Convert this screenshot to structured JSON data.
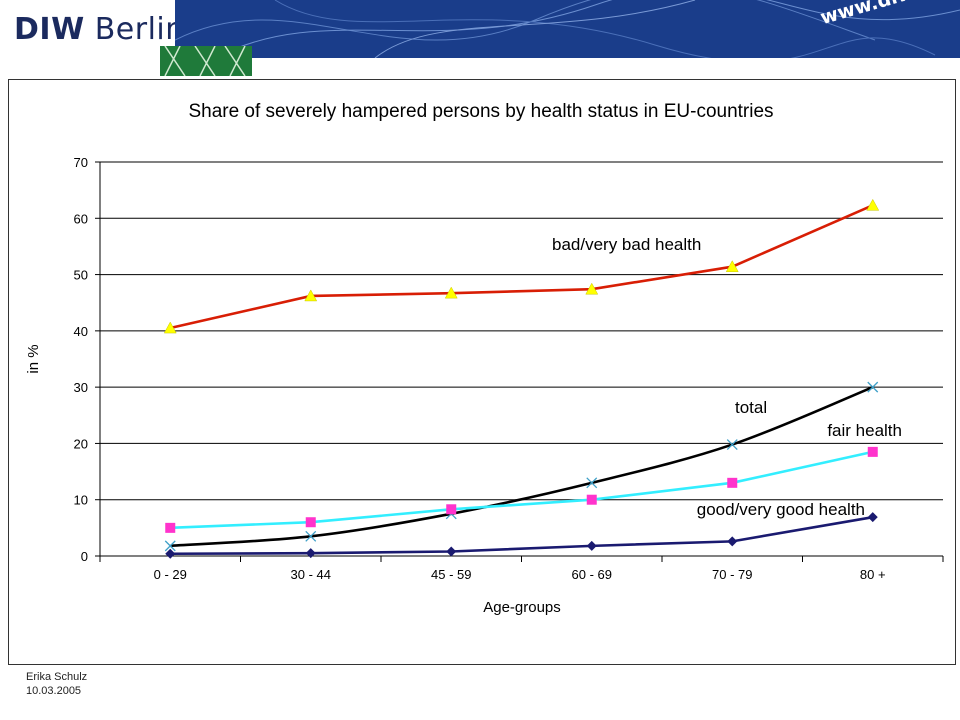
{
  "header": {
    "logo_bold": "DIW",
    "logo_light": "Berlin",
    "url": "www.diw.de"
  },
  "footer": {
    "author": "Erika Schulz",
    "date": "10.03.2005"
  },
  "chart_data": {
    "type": "line",
    "title": "Share of severely hampered persons by health status in EU-countries",
    "xlabel": "Age-groups",
    "ylabel": "in %",
    "ylim": [
      0,
      70
    ],
    "yticks": [
      0,
      10,
      20,
      30,
      40,
      50,
      60,
      70
    ],
    "grid": true,
    "categories": [
      "0 - 29",
      "30 - 44",
      "45 - 59",
      "60 - 69",
      "70 - 79",
      "80 +"
    ],
    "series": [
      {
        "name": "bad/very bad health",
        "values": [
          40.5,
          46.2,
          46.7,
          47.4,
          51.4,
          62.3
        ],
        "line_color": "#d81e05",
        "marker": "triangle",
        "marker_color": "#ffff00"
      },
      {
        "name": "total",
        "values": [
          1.8,
          3.5,
          7.5,
          13.0,
          19.8,
          30.0
        ],
        "line_color": "#000000",
        "marker": "x",
        "marker_color": "#3fa0c8"
      },
      {
        "name": "fair health",
        "values": [
          5.0,
          6.0,
          8.3,
          10.0,
          13.0,
          18.5
        ],
        "line_color": "#33eeff",
        "marker": "square",
        "marker_color": "#ff33cc"
      },
      {
        "name": "good/very good health",
        "values": [
          0.4,
          0.5,
          0.8,
          1.8,
          2.6,
          6.9
        ],
        "line_color": "#1a1a70",
        "marker": "diamond",
        "marker_color": "#1a1a70"
      }
    ]
  }
}
